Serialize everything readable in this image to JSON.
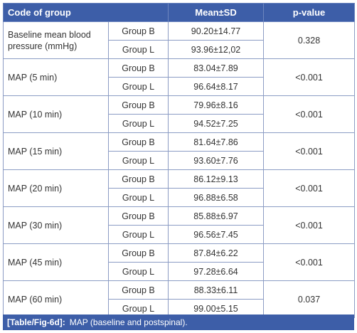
{
  "headers": {
    "code_of_group": "Code of group",
    "mean_sd": "Mean±SD",
    "p_value": "p-value"
  },
  "rows": [
    {
      "parameter": "Baseline mean blood pressure (mmHg)",
      "group_b_label": "Group B",
      "group_b_value": "90.20±14.77",
      "group_l_label": "Group L",
      "group_l_value": "93.96±12,02",
      "p_value": "0.328"
    },
    {
      "parameter": "MAP (5 min)",
      "group_b_label": "Group B",
      "group_b_value": "83.04±7.89",
      "group_l_label": "Group L",
      "group_l_value": "96.64±8.17",
      "p_value": "<0.001"
    },
    {
      "parameter": "MAP (10 min)",
      "group_b_label": "Group B",
      "group_b_value": "79.96±8.16",
      "group_l_label": "Group L",
      "group_l_value": "94.52±7.25",
      "p_value": "<0.001"
    },
    {
      "parameter": "MAP (15 min)",
      "group_b_label": "Group B",
      "group_b_value": "81.64±7.86",
      "group_l_label": "Group L",
      "group_l_value": "93.60±7.76",
      "p_value": "<0.001"
    },
    {
      "parameter": "MAP (20 min)",
      "group_b_label": "Group B",
      "group_b_value": "86.12±9.13",
      "group_l_label": "Group L",
      "group_l_value": "96.88±6.58",
      "p_value": "<0.001"
    },
    {
      "parameter": "MAP (30 min)",
      "group_b_label": "Group B",
      "group_b_value": "85.88±6.97",
      "group_l_label": "Group L",
      "group_l_value": "96.56±7.45",
      "p_value": "<0.001"
    },
    {
      "parameter": "MAP (45 min)",
      "group_b_label": "Group B",
      "group_b_value": "87.84±6.22",
      "group_l_label": "Group L",
      "group_l_value": "97.28±6.64",
      "p_value": "<0.001"
    },
    {
      "parameter": "MAP (60 min)",
      "group_b_label": "Group B",
      "group_b_value": "88.33±6.11",
      "group_l_label": "Group L",
      "group_l_value": "99.00±5.15",
      "p_value": "0.037"
    }
  ],
  "caption": {
    "id": "[Table/Fig-6d]:",
    "text": "MAP (baseline and postspinal)."
  },
  "colors": {
    "header_bg": "#3d5ea8",
    "header_text": "#ffffff",
    "border": "#8c9cc4",
    "body_text": "#333333"
  }
}
